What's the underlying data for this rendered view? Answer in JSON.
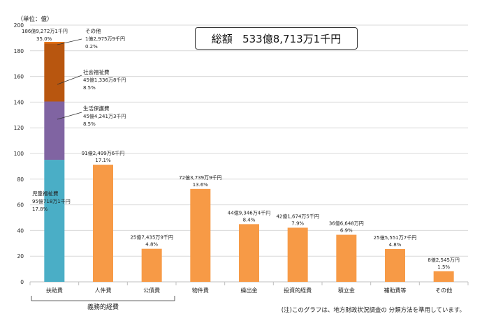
{
  "chart_data": {
    "type": "bar",
    "unit_label": "（単位：億）",
    "total": {
      "label": "総額",
      "value": "533億8,713万1千円"
    },
    "ylim": [
      0,
      200
    ],
    "yticks": [
      0,
      20,
      40,
      60,
      80,
      100,
      120,
      140,
      160,
      180,
      200
    ],
    "categories": [
      "扶助費",
      "人件費",
      "公債費",
      "物件費",
      "繰出金",
      "投資的経費",
      "積立金",
      "補助費等",
      "その他"
    ],
    "values": [
      186.93,
      91.25,
      25.74,
      72.37,
      44.93,
      42.17,
      36.66,
      25.56,
      8.25
    ],
    "colors": {
      "bar": "#f79a46",
      "stack_bottom": "#4aaec6",
      "stack_mid": "#8064a2",
      "stack_top": "#b8560f",
      "stack_cap": "#e46c0a"
    },
    "bar_labels": [
      {
        "amount": "186億9,272万1千円",
        "pct": "35.0%"
      },
      {
        "amount": "91億2,499万6千円",
        "pct": "17.1%"
      },
      {
        "amount": "25億7,435万9千円",
        "pct": "4.8%"
      },
      {
        "amount": "72億3,739万9千円",
        "pct": "13.6%"
      },
      {
        "amount": "44億9,346万4千円",
        "pct": "8.4%"
      },
      {
        "amount": "42億1,674万5千円",
        "pct": "7.9%"
      },
      {
        "amount": "36億6,648万円",
        "pct": "6.9%"
      },
      {
        "amount": "25億5,551万7千円",
        "pct": "4.8%"
      },
      {
        "amount": "8億2,545万円",
        "pct": "1.5%"
      }
    ],
    "stack": [
      {
        "name": "児童福祉費",
        "value": 95.07,
        "amount": "95億718万1千円",
        "pct": "17.8%",
        "color": "#4aaec6"
      },
      {
        "name": "生活保護費",
        "value": 45.42,
        "amount": "45億4,241万3千円",
        "pct": "8.5%",
        "color": "#8064a2"
      },
      {
        "name": "社会福祉費",
        "value": 45.13,
        "amount": "45億1,336万8千円",
        "pct": "8.5%",
        "color": "#b8560f"
      },
      {
        "name": "その他",
        "value": 1.3,
        "amount": "1億2,975万9千円",
        "pct": "0.2%",
        "color": "#e46c0a"
      }
    ],
    "group_label": "義務的経費",
    "group_count": 3,
    "footnote": "(注)このグラフは、地方財政状況調査の 分類方法を準用しています。"
  }
}
